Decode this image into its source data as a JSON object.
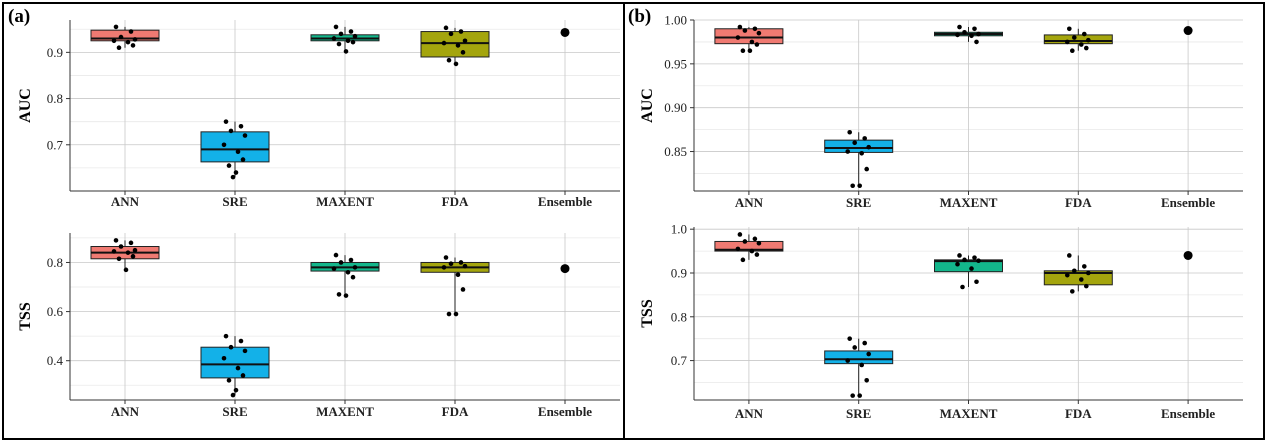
{
  "panels": [
    {
      "label": "(a)"
    },
    {
      "label": "(b)"
    }
  ],
  "chart_data": [
    {
      "panel": "(a)",
      "type": "box",
      "ylabel": "AUC",
      "categories": [
        "ANN",
        "SRE",
        "MAXENT",
        "FDA",
        "Ensemble"
      ],
      "ylim": [
        0.6,
        0.97
      ],
      "yticks": [
        0.7,
        0.8,
        0.9
      ],
      "ytick_labels": [
        "0.7",
        "0.8",
        "0.9"
      ],
      "grid": true,
      "boxes": [
        {
          "category": "ANN",
          "q1": 0.925,
          "median": 0.93,
          "q3": 0.948,
          "whisker_low": 0.91,
          "whisker_high": 0.955,
          "points": [
            0.955,
            0.945,
            0.933,
            0.928,
            0.925,
            0.922,
            0.915,
            0.91
          ],
          "color": "#F07A72"
        },
        {
          "category": "SRE",
          "q1": 0.663,
          "median": 0.69,
          "q3": 0.728,
          "whisker_low": 0.63,
          "whisker_high": 0.75,
          "points": [
            0.75,
            0.74,
            0.73,
            0.72,
            0.7,
            0.685,
            0.668,
            0.655,
            0.64,
            0.63
          ],
          "color": "#13B1E8"
        },
        {
          "category": "MAXENT",
          "q1": 0.925,
          "median": 0.93,
          "q3": 0.938,
          "whisker_low": 0.902,
          "whisker_high": 0.955,
          "points": [
            0.955,
            0.945,
            0.94,
            0.935,
            0.93,
            0.925,
            0.922,
            0.918,
            0.902
          ],
          "color": "#13B68B"
        },
        {
          "category": "FDA",
          "q1": 0.89,
          "median": 0.92,
          "q3": 0.945,
          "whisker_low": 0.873,
          "whisker_high": 0.953,
          "points": [
            0.953,
            0.945,
            0.94,
            0.925,
            0.92,
            0.915,
            0.9,
            0.883,
            0.875
          ],
          "color": "#A4A50D"
        },
        {
          "category": "Ensemble",
          "points": [
            0.943
          ]
        }
      ]
    },
    {
      "panel": "(a)",
      "type": "box",
      "ylabel": "TSS",
      "categories": [
        "ANN",
        "SRE",
        "MAXENT",
        "FDA",
        "Ensemble"
      ],
      "ylim": [
        0.24,
        0.92
      ],
      "yticks": [
        0.4,
        0.6,
        0.8
      ],
      "ytick_labels": [
        "0.4",
        "0.6",
        "0.8"
      ],
      "grid": true,
      "boxes": [
        {
          "category": "ANN",
          "q1": 0.815,
          "median": 0.84,
          "q3": 0.865,
          "whisker_low": 0.77,
          "whisker_high": 0.89,
          "points": [
            0.89,
            0.88,
            0.865,
            0.85,
            0.845,
            0.84,
            0.825,
            0.815,
            0.77
          ],
          "color": "#F07A72"
        },
        {
          "category": "SRE",
          "q1": 0.33,
          "median": 0.385,
          "q3": 0.455,
          "whisker_low": 0.26,
          "whisker_high": 0.5,
          "points": [
            0.5,
            0.48,
            0.455,
            0.44,
            0.41,
            0.37,
            0.34,
            0.32,
            0.28,
            0.26
          ],
          "color": "#13B1E8"
        },
        {
          "category": "MAXENT",
          "q1": 0.765,
          "median": 0.78,
          "q3": 0.8,
          "whisker_low": 0.665,
          "whisker_high": 0.83,
          "points": [
            0.83,
            0.81,
            0.8,
            0.78,
            0.775,
            0.76,
            0.74,
            0.67,
            0.665
          ],
          "color": "#13B68B"
        },
        {
          "category": "FDA",
          "q1": 0.76,
          "median": 0.78,
          "q3": 0.8,
          "whisker_low": 0.59,
          "whisker_high": 0.82,
          "points": [
            0.82,
            0.8,
            0.795,
            0.785,
            0.78,
            0.75,
            0.69,
            0.59,
            0.59
          ],
          "color": "#A4A50D"
        },
        {
          "category": "Ensemble",
          "points": [
            0.775
          ]
        }
      ]
    },
    {
      "panel": "(b)",
      "type": "box",
      "ylabel": "AUC",
      "categories": [
        "ANN",
        "SRE",
        "MAXENT",
        "FDA",
        "Ensemble"
      ],
      "ylim": [
        0.805,
        1.0
      ],
      "yticks": [
        0.85,
        0.9,
        0.95,
        1.0
      ],
      "ytick_labels": [
        "0.85",
        "0.90",
        "0.95",
        "1.00"
      ],
      "grid": true,
      "boxes": [
        {
          "category": "ANN",
          "q1": 0.973,
          "median": 0.98,
          "q3": 0.99,
          "whisker_low": 0.965,
          "whisker_high": 0.992,
          "points": [
            0.992,
            0.99,
            0.988,
            0.985,
            0.98,
            0.975,
            0.972,
            0.965,
            0.965
          ],
          "color": "#F07A72"
        },
        {
          "category": "SRE",
          "q1": 0.849,
          "median": 0.854,
          "q3": 0.863,
          "whisker_low": 0.811,
          "whisker_high": 0.872,
          "points": [
            0.872,
            0.865,
            0.86,
            0.855,
            0.85,
            0.848,
            0.83,
            0.811,
            0.811
          ],
          "color": "#13B1E8"
        },
        {
          "category": "MAXENT",
          "q1": 0.982,
          "median": 0.984,
          "q3": 0.986,
          "whisker_low": 0.975,
          "whisker_high": 0.992,
          "points": [
            0.992,
            0.99,
            0.986,
            0.984,
            0.983,
            0.982,
            0.975
          ],
          "color": "#13B68B"
        },
        {
          "category": "FDA",
          "q1": 0.973,
          "median": 0.976,
          "q3": 0.983,
          "whisker_low": 0.965,
          "whisker_high": 0.99,
          "points": [
            0.99,
            0.984,
            0.98,
            0.977,
            0.975,
            0.972,
            0.968,
            0.965
          ],
          "color": "#A4A50D"
        },
        {
          "category": "Ensemble",
          "points": [
            0.988
          ]
        }
      ]
    },
    {
      "panel": "(b)",
      "type": "box",
      "ylabel": "TSS",
      "categories": [
        "ANN",
        "SRE",
        "MAXENT",
        "FDA",
        "Ensemble"
      ],
      "ylim": [
        0.61,
        1.005
      ],
      "yticks": [
        0.7,
        0.8,
        0.9,
        1.0
      ],
      "ytick_labels": [
        "0.7",
        "0.8",
        "0.9",
        "1.0"
      ],
      "grid": true,
      "boxes": [
        {
          "category": "ANN",
          "q1": 0.95,
          "median": 0.953,
          "q3": 0.972,
          "whisker_low": 0.93,
          "whisker_high": 0.988,
          "points": [
            0.988,
            0.978,
            0.972,
            0.968,
            0.955,
            0.95,
            0.942,
            0.93
          ],
          "color": "#F07A72"
        },
        {
          "category": "SRE",
          "q1": 0.693,
          "median": 0.703,
          "q3": 0.722,
          "whisker_low": 0.62,
          "whisker_high": 0.75,
          "points": [
            0.75,
            0.74,
            0.73,
            0.715,
            0.7,
            0.69,
            0.655,
            0.62,
            0.62
          ],
          "color": "#13B1E8"
        },
        {
          "category": "MAXENT",
          "q1": 0.903,
          "median": 0.927,
          "q3": 0.93,
          "whisker_low": 0.868,
          "whisker_high": 0.94,
          "points": [
            0.94,
            0.935,
            0.93,
            0.928,
            0.92,
            0.91,
            0.88,
            0.868
          ],
          "color": "#13B68B"
        },
        {
          "category": "FDA",
          "q1": 0.873,
          "median": 0.9,
          "q3": 0.905,
          "whisker_low": 0.858,
          "whisker_high": 0.94,
          "points": [
            0.94,
            0.915,
            0.905,
            0.9,
            0.895,
            0.885,
            0.87,
            0.858
          ],
          "color": "#A4A50D"
        },
        {
          "category": "Ensemble",
          "points": [
            0.94
          ]
        }
      ]
    }
  ]
}
